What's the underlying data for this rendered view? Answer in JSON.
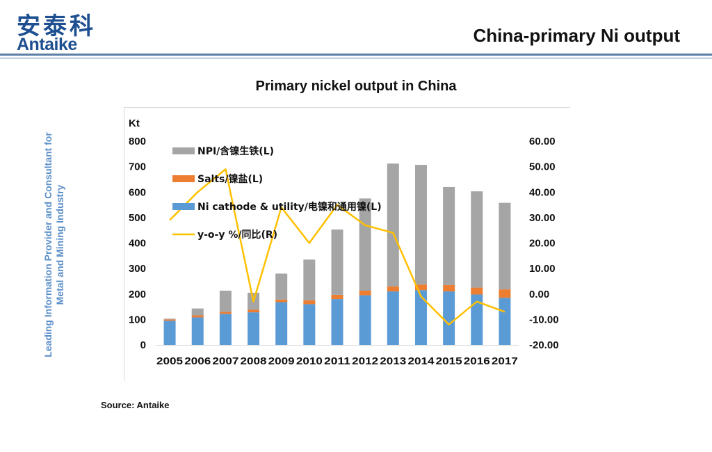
{
  "header": {
    "logo_cn": "安泰科",
    "logo_en": "Antaike",
    "title": "China-primary Ni output"
  },
  "sidebar": {
    "line1": "Leading Information Provider and Consultant for",
    "line2": "Metal and Mining Industry"
  },
  "footer": {
    "source": "Source: Antaike"
  },
  "colors": {
    "npi": "#a5a5a5",
    "salts": "#ed7d31",
    "cathode": "#5b9bd5",
    "yoy": "#ffc000",
    "brand": "#1d4f91"
  },
  "chart_data": {
    "type": "bar",
    "title": "Primary nickel output in China",
    "ylabel_left": "Kt",
    "categories": [
      "2005",
      "2006",
      "2007",
      "2008",
      "2009",
      "2010",
      "2011",
      "2012",
      "2013",
      "2014",
      "2015",
      "2016",
      "2017"
    ],
    "left_axis": {
      "min": 0,
      "max": 800,
      "ticks": [
        "0",
        "100",
        "200",
        "300",
        "400",
        "500",
        "600",
        "700",
        "800"
      ]
    },
    "right_axis": {
      "min": -20,
      "max": 60,
      "ticks": [
        "-20.00",
        "-10.00",
        "0.00",
        "10.00",
        "20.00",
        "30.00",
        "40.00",
        "50.00",
        "60.00"
      ]
    },
    "series": [
      {
        "name": "Ni cathode & utility/电镍和通用镍(L)",
        "type": "bar",
        "values": [
          95,
          108,
          122,
          128,
          168,
          160,
          180,
          195,
          210,
          215,
          210,
          198,
          185
        ]
      },
      {
        "name": "Salts/镍盐(L)",
        "type": "bar",
        "values": [
          5,
          8,
          8,
          10,
          10,
          15,
          17,
          18,
          20,
          22,
          25,
          27,
          33
        ]
      },
      {
        "name": "NPI/含镍生铁(L)",
        "type": "bar",
        "values": [
          3,
          27,
          83,
          67,
          102,
          160,
          256,
          362,
          482,
          470,
          385,
          378,
          340
        ]
      },
      {
        "name": "y-o-y %/同比(R)",
        "type": "line",
        "values": [
          29,
          40,
          49,
          -3,
          34,
          20,
          35,
          27,
          24,
          -1,
          -12,
          -3,
          -7
        ]
      }
    ]
  }
}
